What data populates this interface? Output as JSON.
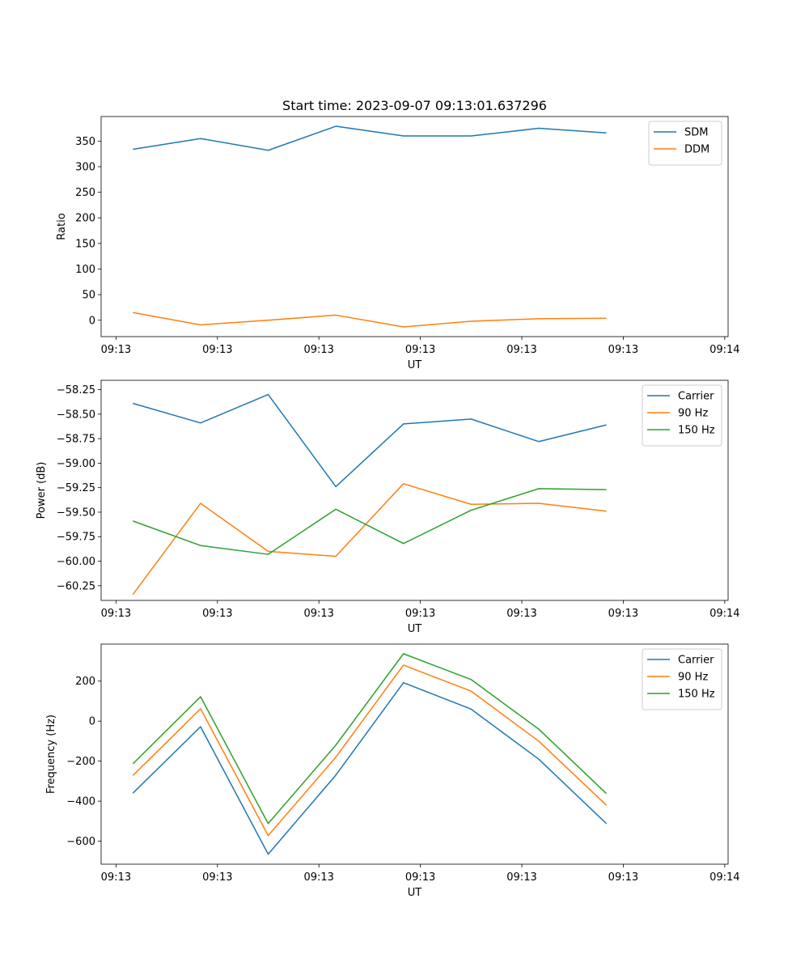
{
  "figure_title": "Start time: 2023-09-07 09:13:01.637296",
  "colors": {
    "blue": "#1f77b4",
    "orange": "#ff7f0e",
    "green": "#2ca02c"
  },
  "chart_data": [
    {
      "type": "line",
      "title": "Start time: 2023-09-07 09:13:01.637296",
      "xlabel": "UT",
      "ylabel": "Ratio",
      "xlim": [
        -0.47,
        8.8
      ],
      "ylim": [
        -32,
        398
      ],
      "yticks": [
        0,
        50,
        100,
        150,
        200,
        250,
        300,
        350
      ],
      "yticklabels": [
        "0",
        "50",
        "100",
        "150",
        "200",
        "250",
        "300",
        "350"
      ],
      "xticks": [
        -0.25,
        1.25,
        2.75,
        4.25,
        5.75,
        7.25,
        8.75
      ],
      "xticklabels": [
        "09:13",
        "09:13",
        "09:13",
        "09:13",
        "09:13",
        "09:13",
        "09:14"
      ],
      "legend_position": "top-right",
      "x": [
        0,
        1,
        2,
        3,
        4,
        5,
        6,
        7
      ],
      "series": [
        {
          "name": "SDM",
          "color": "#1f77b4",
          "values": [
            334,
            355,
            332,
            379,
            360,
            360,
            375,
            366
          ]
        },
        {
          "name": "DDM",
          "color": "#ff7f0e",
          "values": [
            15,
            -9,
            0,
            10,
            -13,
            -2,
            3,
            4
          ]
        }
      ]
    },
    {
      "type": "line",
      "title": "",
      "xlabel": "UT",
      "ylabel": "Power (dB)",
      "xlim": [
        -0.47,
        8.8
      ],
      "ylim": [
        -60.4,
        -58.155
      ],
      "yticks": [
        -60.25,
        -60.0,
        -59.75,
        -59.5,
        -59.25,
        -59.0,
        -58.75,
        -58.5,
        -58.25
      ],
      "yticklabels": [
        "−60.25",
        "−60.00",
        "−59.75",
        "−59.50",
        "−59.25",
        "−59.00",
        "−58.75",
        "−58.50",
        "−58.25"
      ],
      "xticks": [
        -0.25,
        1.25,
        2.75,
        4.25,
        5.75,
        7.25,
        8.75
      ],
      "xticklabels": [
        "09:13",
        "09:13",
        "09:13",
        "09:13",
        "09:13",
        "09:13",
        "09:14"
      ],
      "legend_position": "top-right",
      "x": [
        0,
        1,
        2,
        3,
        4,
        5,
        6,
        7
      ],
      "series": [
        {
          "name": "Carrier",
          "color": "#1f77b4",
          "values": [
            -58.39,
            -58.59,
            -58.3,
            -59.24,
            -58.6,
            -58.55,
            -58.78,
            -58.61
          ]
        },
        {
          "name": "90 Hz",
          "color": "#ff7f0e",
          "values": [
            -60.34,
            -59.41,
            -59.9,
            -59.95,
            -59.21,
            -59.42,
            -59.41,
            -59.49
          ]
        },
        {
          "name": "150 Hz",
          "color": "#2ca02c",
          "values": [
            -59.59,
            -59.84,
            -59.93,
            -59.47,
            -59.82,
            -59.48,
            -59.26,
            -59.27
          ]
        }
      ]
    },
    {
      "type": "line",
      "title": "",
      "xlabel": "UT",
      "ylabel": "Frequency (Hz)",
      "xlim": [
        -0.47,
        8.8
      ],
      "ylim": [
        -715,
        385
      ],
      "yticks": [
        -600,
        -400,
        -200,
        0,
        200
      ],
      "yticklabels": [
        "−600",
        "−400",
        "−200",
        "0",
        "200"
      ],
      "xticks": [
        -0.25,
        1.25,
        2.75,
        4.25,
        5.75,
        7.25,
        8.75
      ],
      "xticklabels": [
        "09:13",
        "09:13",
        "09:13",
        "09:13",
        "09:13",
        "09:13",
        "09:14"
      ],
      "legend_position": "top-right",
      "x": [
        0,
        1,
        2,
        3,
        4,
        5,
        6,
        7
      ],
      "series": [
        {
          "name": "Carrier",
          "color": "#1f77b4",
          "values": [
            -360,
            -28,
            -665,
            -270,
            192,
            60,
            -190,
            -512
          ]
        },
        {
          "name": "90 Hz",
          "color": "#ff7f0e",
          "values": [
            -272,
            62,
            -572,
            -180,
            280,
            150,
            -100,
            -420
          ]
        },
        {
          "name": "150 Hz",
          "color": "#2ca02c",
          "values": [
            -213,
            122,
            -512,
            -120,
            337,
            208,
            -40,
            -362
          ]
        }
      ]
    }
  ]
}
